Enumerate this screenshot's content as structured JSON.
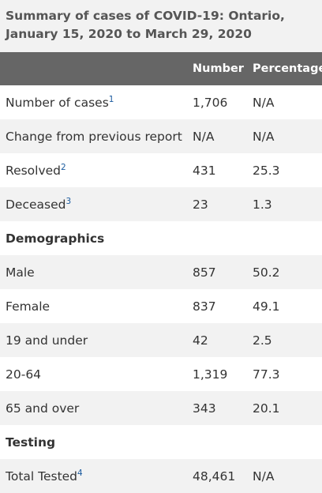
{
  "caption": "Summary of cases of COVID-19: Ontario, January 15, 2020 to March 29, 2020",
  "headers": [
    "",
    "Number",
    "Percentage"
  ],
  "rows": [
    {
      "label": "Number of cases",
      "sup": "1",
      "number": "1,706",
      "percentage": "N/A"
    },
    {
      "label": "Change from previous report",
      "sup": "",
      "number": "N/A",
      "percentage": "N/A"
    },
    {
      "label": "Resolved",
      "sup": "2",
      "number": "431",
      "percentage": "25.3"
    },
    {
      "label": "Deceased",
      "sup": "3",
      "number": "23",
      "percentage": "1.3"
    },
    {
      "label": "Demographics",
      "sup": "",
      "number": "",
      "percentage": ""
    },
    {
      "label": "Male",
      "sup": "",
      "number": "857",
      "percentage": "50.2"
    },
    {
      "label": "Female",
      "sup": "",
      "number": "837",
      "percentage": "49.1"
    },
    {
      "label": "19 and under",
      "sup": "",
      "number": "42",
      "percentage": "2.5"
    },
    {
      "label": "20-64",
      "sup": "",
      "number": "1,319",
      "percentage": "77.3"
    },
    {
      "label": "65 and over",
      "sup": "",
      "number": "343",
      "percentage": "20.1"
    },
    {
      "label": "Testing",
      "sup": "",
      "number": "",
      "percentage": ""
    },
    {
      "label": "Total Tested",
      "sup": "4",
      "number": "48,461",
      "percentage": "N/A"
    }
  ]
}
